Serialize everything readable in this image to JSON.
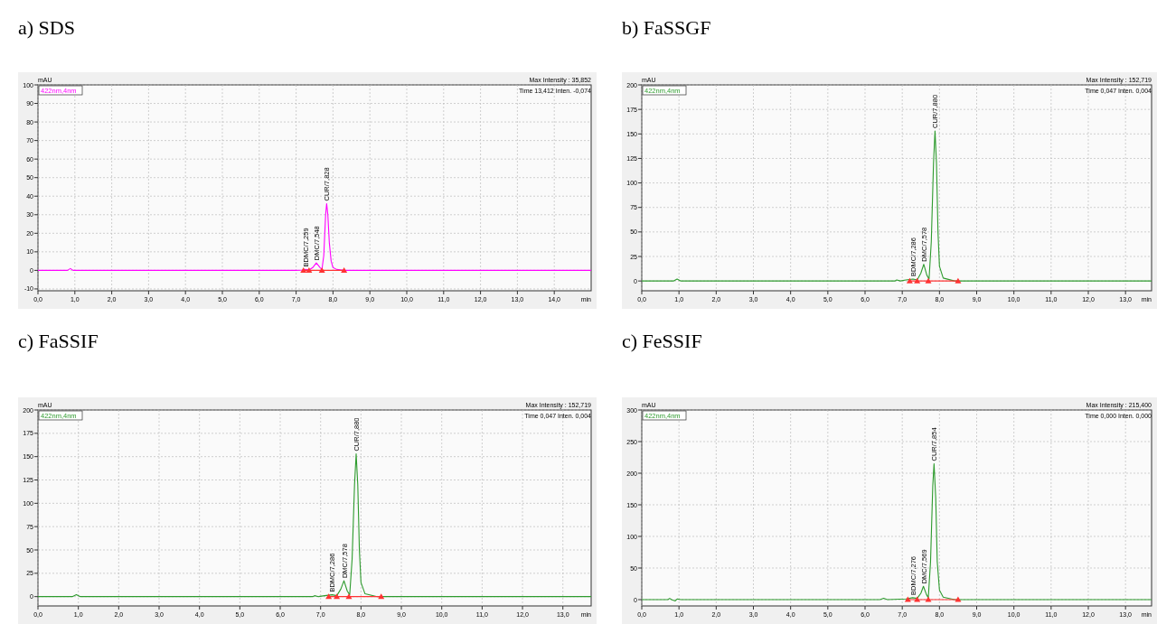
{
  "chart_data": [
    {
      "type": "line",
      "title": "a) SDS",
      "xlabel": "min",
      "ylabel": "mAU",
      "grid": true,
      "legend": "top left",
      "xlim": [
        0,
        15
      ],
      "xticks": [
        {
          "value": 0,
          "label": "0,0"
        },
        {
          "value": 1,
          "label": "1,0"
        },
        {
          "value": 2,
          "label": "2,0"
        },
        {
          "value": 3,
          "label": "3,0"
        },
        {
          "value": 4,
          "label": "4,0"
        },
        {
          "value": 5,
          "label": "5,0"
        },
        {
          "value": 6,
          "label": "6,0"
        },
        {
          "value": 7,
          "label": "7,0"
        },
        {
          "value": 8,
          "label": "8,0"
        },
        {
          "value": 9,
          "label": "9,0"
        },
        {
          "value": 10,
          "label": "10,0"
        },
        {
          "value": 11,
          "label": "11,0"
        },
        {
          "value": 12,
          "label": "12,0"
        },
        {
          "value": 13,
          "label": "13,0"
        },
        {
          "value": 14,
          "label": "14,0"
        }
      ],
      "ylim": [
        -11,
        100
      ],
      "yticks": [
        -10,
        0,
        10,
        20,
        30,
        40,
        50,
        60,
        70,
        80,
        90,
        100
      ],
      "annotations": [
        "Max Intensity : 35,852",
        "Time 13,412 Inten. -0,074",
        {
          "text": "BDMC/7,259",
          "x": 7.259,
          "y": 0.5
        },
        {
          "text": "DMC/7,548",
          "x": 7.548,
          "y": 4
        },
        {
          "text": "CUR/7,828",
          "x": 7.828,
          "y": 36
        }
      ],
      "series": [
        {
          "name": "422nm,4nm",
          "color": "#ff00ff",
          "x": [
            0,
            0.8,
            0.88,
            0.95,
            1.1,
            7.0,
            7.2,
            7.259,
            7.35,
            7.45,
            7.548,
            7.65,
            7.7,
            7.75,
            7.8,
            7.828,
            7.86,
            7.9,
            7.95,
            8.0,
            8.1,
            8.3,
            15
          ],
          "values": [
            0,
            0,
            1,
            0,
            0,
            0,
            0.2,
            0.5,
            0.2,
            1.5,
            4,
            1.5,
            0.5,
            8,
            30,
            36,
            30,
            15,
            5,
            1.5,
            0.5,
            0,
            0
          ]
        },
        {
          "type": "line",
          "color": "#ff3333",
          "x": [
            7.2,
            8.3
          ],
          "values": [
            0,
            0
          ]
        },
        {
          "type": "scatter",
          "marker": "triangle",
          "color": "#ff3333",
          "x": [
            7.2,
            7.35,
            7.7,
            8.3
          ],
          "values": [
            0,
            0,
            0,
            0
          ]
        }
      ]
    },
    {
      "type": "line",
      "title": "b) FaSSGF",
      "xlabel": "min",
      "ylabel": "mAU",
      "grid": true,
      "legend": "top left",
      "xlim": [
        0,
        13.7
      ],
      "xticks": [
        {
          "value": 0,
          "label": "0,0"
        },
        {
          "value": 1,
          "label": "1,0"
        },
        {
          "value": 2,
          "label": "2,0"
        },
        {
          "value": 3,
          "label": "3,0"
        },
        {
          "value": 4,
          "label": "4,0"
        },
        {
          "value": 5,
          "label": "5,0"
        },
        {
          "value": 6,
          "label": "6,0"
        },
        {
          "value": 7,
          "label": "7,0"
        },
        {
          "value": 8,
          "label": "8,0"
        },
        {
          "value": 9,
          "label": "9,0"
        },
        {
          "value": 10,
          "label": "10,0"
        },
        {
          "value": 11,
          "label": "11,0"
        },
        {
          "value": 12,
          "label": "12,0"
        },
        {
          "value": 13,
          "label": "13,0"
        }
      ],
      "ylim": [
        -10,
        200
      ],
      "yticks": [
        0,
        25,
        50,
        75,
        100,
        125,
        150,
        175,
        200
      ],
      "annotations": [
        "Max Intensity : 152,719",
        "Time 0,047 Inten. 0,004",
        {
          "text": "BDMC/7,286",
          "x": 7.286,
          "y": 2
        },
        {
          "text": "DMC/7,578",
          "x": 7.578,
          "y": 17
        },
        {
          "text": "CUR/7,880",
          "x": 7.88,
          "y": 153
        }
      ],
      "series": [
        {
          "name": "422nm,4nm",
          "color": "#2e9b2e",
          "x": [
            0,
            0.85,
            0.95,
            1.05,
            4.1,
            6.8,
            6.85,
            6.95,
            7.1,
            7.286,
            7.4,
            7.5,
            7.578,
            7.66,
            7.72,
            7.78,
            7.84,
            7.88,
            7.92,
            7.96,
            8.0,
            8.1,
            8.4,
            13.7
          ],
          "values": [
            0,
            0,
            2,
            0,
            0,
            0,
            1,
            0,
            1,
            2,
            1,
            8,
            17,
            6,
            2,
            40,
            120,
            153,
            120,
            50,
            15,
            3,
            0,
            0
          ]
        },
        {
          "type": "line",
          "color": "#ff3333",
          "x": [
            7.2,
            8.5
          ],
          "values": [
            0,
            0
          ]
        },
        {
          "type": "scatter",
          "marker": "triangle",
          "color": "#ff3333",
          "x": [
            7.2,
            7.4,
            7.7,
            8.5
          ],
          "values": [
            0,
            0,
            0,
            0
          ]
        }
      ]
    },
    {
      "type": "line",
      "title": "c) FaSSIF",
      "xlabel": "min",
      "ylabel": "mAU",
      "grid": true,
      "legend": "top left",
      "xlim": [
        0,
        13.7
      ],
      "xticks": [
        {
          "value": 0,
          "label": "0,0"
        },
        {
          "value": 1,
          "label": "1,0"
        },
        {
          "value": 2,
          "label": "2,0"
        },
        {
          "value": 3,
          "label": "3,0"
        },
        {
          "value": 4,
          "label": "4,0"
        },
        {
          "value": 5,
          "label": "5,0"
        },
        {
          "value": 6,
          "label": "6,0"
        },
        {
          "value": 7,
          "label": "7,0"
        },
        {
          "value": 8,
          "label": "8,0"
        },
        {
          "value": 9,
          "label": "9,0"
        },
        {
          "value": 10,
          "label": "10,0"
        },
        {
          "value": 11,
          "label": "11,0"
        },
        {
          "value": 12,
          "label": "12,0"
        },
        {
          "value": 13,
          "label": "13,0"
        }
      ],
      "ylim": [
        -10,
        200
      ],
      "yticks": [
        0,
        25,
        50,
        75,
        100,
        125,
        150,
        175,
        200
      ],
      "annotations": [
        "Max Intensity : 152,719",
        "Time 0,047 Inten. 0,004",
        {
          "text": "BDMC/7,286",
          "x": 7.286,
          "y": 2
        },
        {
          "text": "DMC/7,578",
          "x": 7.578,
          "y": 17
        },
        {
          "text": "CUR/7,880",
          "x": 7.88,
          "y": 153
        }
      ],
      "series": [
        {
          "name": "422nm,4nm",
          "color": "#2e9b2e",
          "x": [
            0,
            0.85,
            0.95,
            1.05,
            4.1,
            6.8,
            6.85,
            6.95,
            7.1,
            7.286,
            7.4,
            7.5,
            7.578,
            7.66,
            7.72,
            7.78,
            7.84,
            7.88,
            7.92,
            7.96,
            8.0,
            8.1,
            8.4,
            13.7
          ],
          "values": [
            0,
            0,
            2,
            0,
            0,
            0,
            1,
            0,
            1,
            2,
            1,
            8,
            17,
            6,
            2,
            40,
            120,
            153,
            120,
            50,
            15,
            3,
            0,
            0
          ]
        },
        {
          "type": "line",
          "color": "#ff3333",
          "x": [
            7.2,
            8.5
          ],
          "values": [
            0,
            0
          ]
        },
        {
          "type": "scatter",
          "marker": "triangle",
          "color": "#ff3333",
          "x": [
            7.2,
            7.4,
            7.7,
            8.5
          ],
          "values": [
            0,
            0,
            0,
            0
          ]
        }
      ]
    },
    {
      "type": "line",
      "title": "c) FeSSIF",
      "xlabel": "min",
      "ylabel": "mAU",
      "grid": true,
      "legend": "top left",
      "xlim": [
        0,
        13.7
      ],
      "xticks": [
        {
          "value": 0,
          "label": "0,0"
        },
        {
          "value": 1,
          "label": "1,0"
        },
        {
          "value": 2,
          "label": "2,0"
        },
        {
          "value": 3,
          "label": "3,0"
        },
        {
          "value": 4,
          "label": "4,0"
        },
        {
          "value": 5,
          "label": "5,0"
        },
        {
          "value": 6,
          "label": "6,0"
        },
        {
          "value": 7,
          "label": "7,0"
        },
        {
          "value": 8,
          "label": "8,0"
        },
        {
          "value": 9,
          "label": "9,0"
        },
        {
          "value": 10,
          "label": "10,0"
        },
        {
          "value": 11,
          "label": "11,0"
        },
        {
          "value": 12,
          "label": "12,0"
        },
        {
          "value": 13,
          "label": "13,0"
        }
      ],
      "ylim": [
        -10,
        300
      ],
      "yticks": [
        0,
        50,
        100,
        150,
        200,
        250,
        300
      ],
      "annotations": [
        "Max Intensity : 215,400",
        "Time 0,000 Inten. 0,000",
        {
          "text": "BDMC/7,276",
          "x": 7.276,
          "y": 3
        },
        {
          "text": "DMC/7,569",
          "x": 7.569,
          "y": 21
        },
        {
          "text": "CUR/7,854",
          "x": 7.854,
          "y": 215
        }
      ],
      "series": [
        {
          "name": "422nm,4nm",
          "color": "#2e9b2e",
          "x": [
            0,
            0.7,
            0.75,
            0.8,
            0.9,
            0.95,
            1.05,
            6.4,
            6.5,
            6.6,
            7.1,
            7.276,
            7.4,
            7.5,
            7.569,
            7.65,
            7.7,
            7.76,
            7.82,
            7.854,
            7.9,
            7.94,
            8.0,
            8.1,
            8.4,
            13.7
          ],
          "values": [
            0,
            0,
            2,
            0,
            -2,
            1,
            0,
            0,
            2,
            0,
            1,
            3,
            2,
            10,
            21,
            8,
            3,
            60,
            180,
            215,
            160,
            60,
            15,
            4,
            0,
            0
          ]
        },
        {
          "type": "line",
          "color": "#ff3333",
          "x": [
            7.15,
            8.5
          ],
          "values": [
            0,
            0
          ]
        },
        {
          "type": "scatter",
          "marker": "triangle",
          "color": "#ff3333",
          "x": [
            7.15,
            7.4,
            7.7,
            8.5
          ],
          "values": [
            0,
            0,
            0,
            0
          ]
        }
      ]
    }
  ]
}
